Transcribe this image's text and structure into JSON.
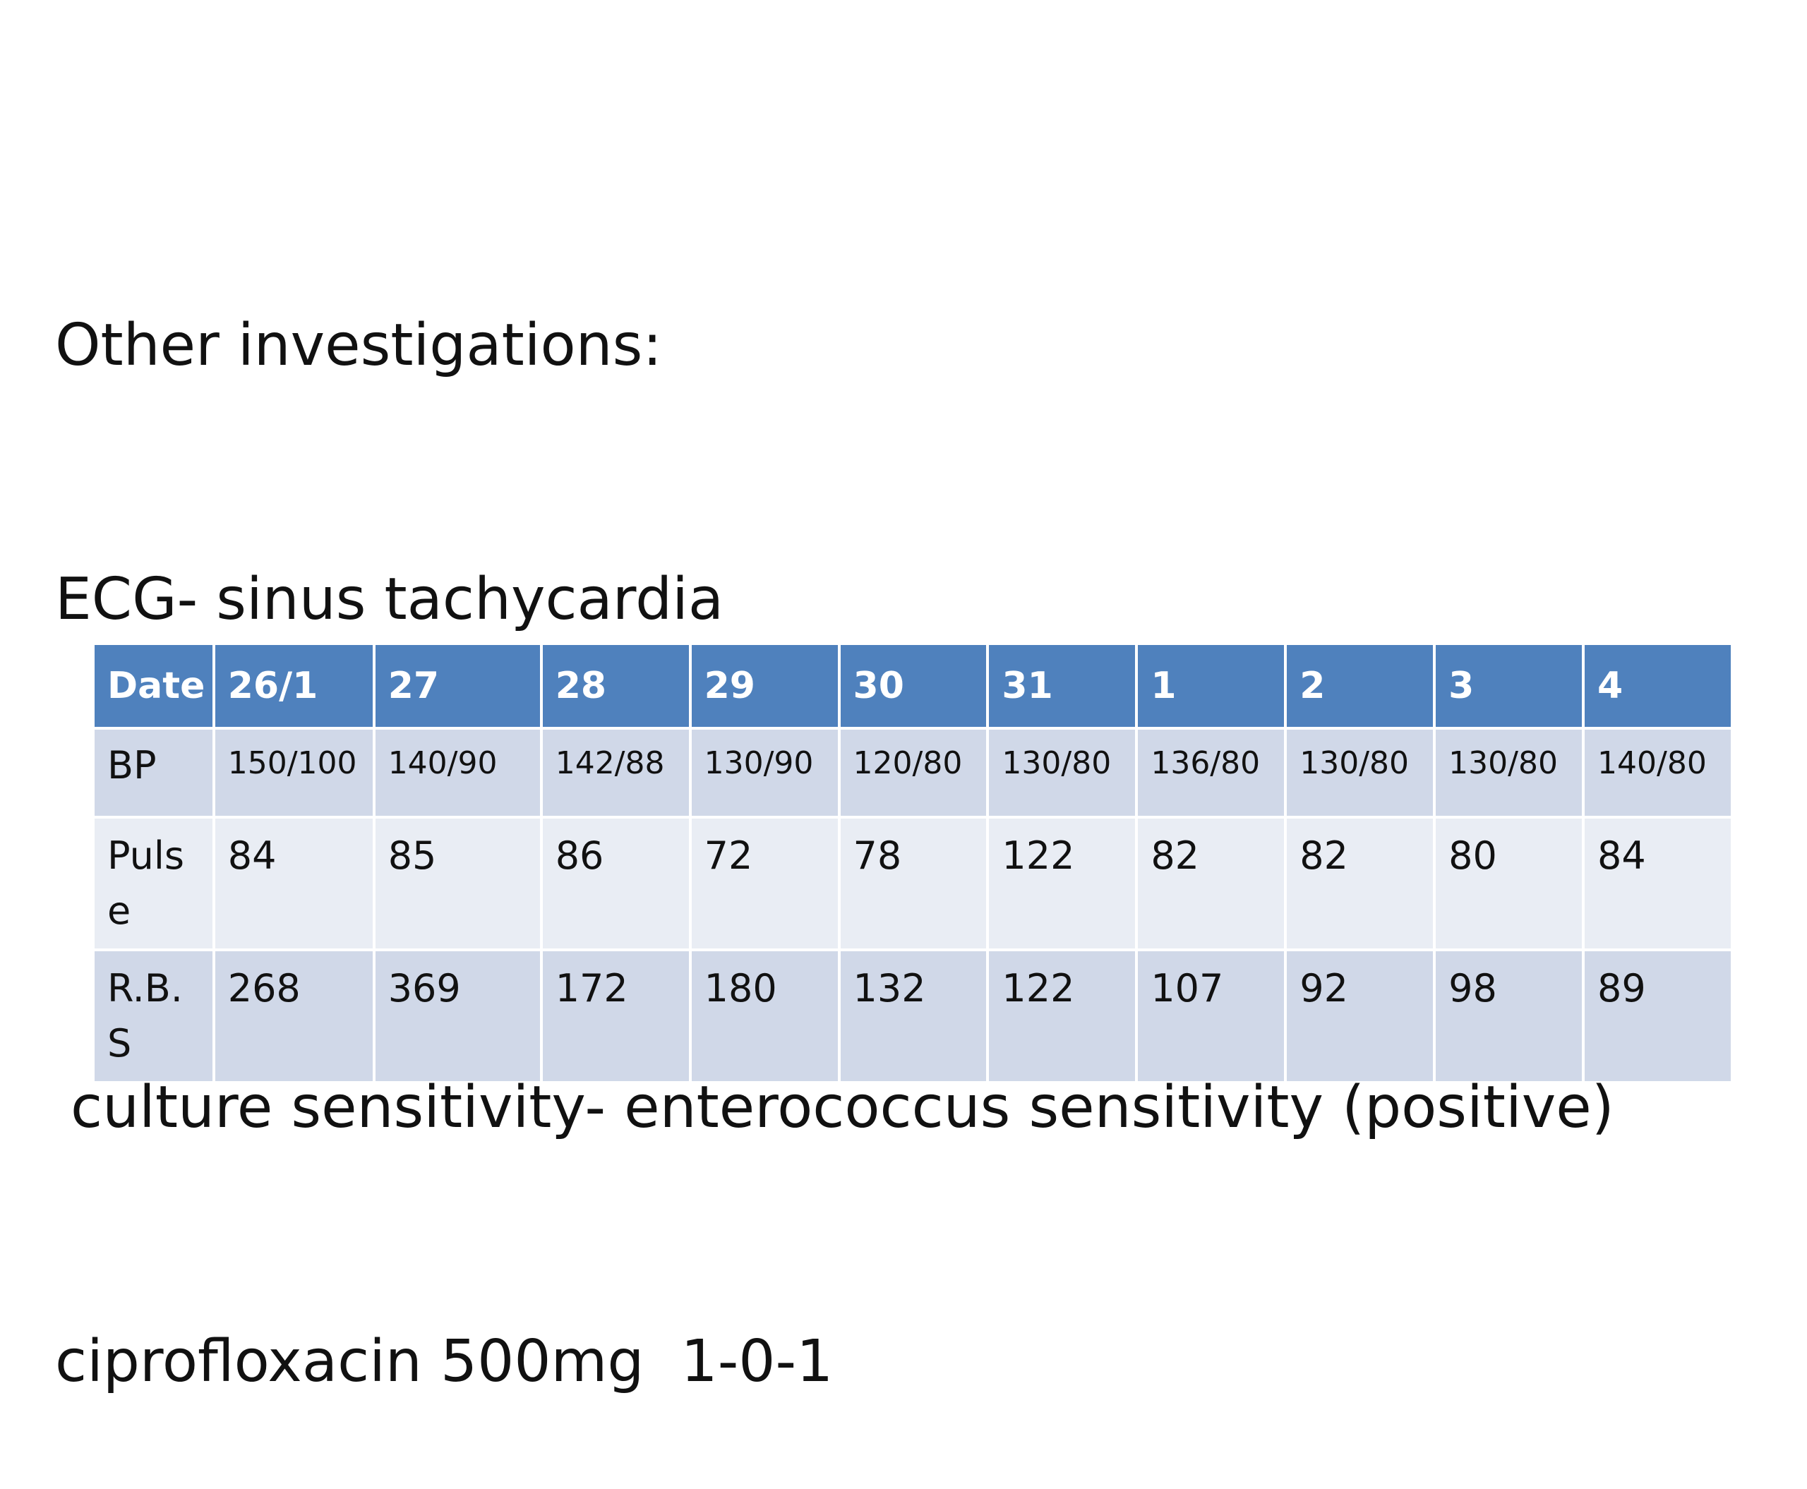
{
  "slide": {
    "heading": "Other investigations:",
    "ecg": "ECG- sinus tachycardia",
    "culture": "culture sensitivity- enterococcus sensitivity (positive)",
    "treatment": "ciprofloxacin 500mg  1-0-1"
  },
  "table": {
    "columns": [
      "Date",
      "26/1",
      "27",
      "28",
      "29",
      "30",
      "31",
      "1",
      "2",
      "3",
      "4"
    ],
    "rows": [
      {
        "label": "BP",
        "values": [
          "150/100",
          "140/90",
          "142/88",
          "130/90",
          "120/80",
          "130/80",
          "136/80",
          "130/80",
          "130/80",
          "140/80"
        ]
      },
      {
        "label": "Puls\ne",
        "values": [
          "84",
          "85",
          "86",
          "72",
          "78",
          "122",
          "82",
          "82",
          "80",
          "84"
        ]
      },
      {
        "label": "R.B.\nS",
        "values": [
          "268",
          "369",
          "172",
          "180",
          "132",
          "122",
          "107",
          "92",
          "98",
          "89"
        ]
      }
    ]
  },
  "colors": {
    "header_bg": "#4f81bd",
    "row_light_bg": "#e9edf4",
    "row_dark_bg": "#d0d8e8"
  }
}
